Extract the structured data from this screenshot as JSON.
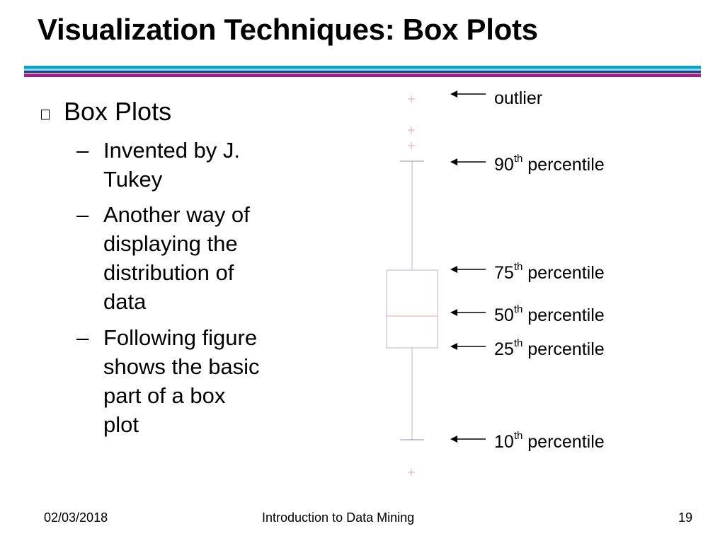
{
  "slide": {
    "title": "Visualization Techniques: Box Plots",
    "bullet": "Box Plots",
    "bullet_icon": "square-bullet-icon",
    "subpoints": [
      {
        "lines": [
          "Invented by J.",
          "Tukey"
        ]
      },
      {
        "lines": [
          "Another way of",
          "displaying the",
          "distribution of",
          "data"
        ]
      },
      {
        "lines": [
          "Following figure",
          "shows the basic",
          "part of a box",
          "plot"
        ]
      }
    ],
    "dash": "–"
  },
  "figure": {
    "labels": [
      {
        "num": "",
        "sup": "",
        "text": "outlier"
      },
      {
        "num": "90",
        "sup": "th",
        "text": " percentile"
      },
      {
        "num": "75",
        "sup": "th",
        "text": " percentile"
      },
      {
        "num": "50",
        "sup": "th",
        "text": " percentile"
      },
      {
        "num": "25",
        "sup": "th",
        "text": " percentile"
      },
      {
        "num": "10",
        "sup": "th",
        "text": " percentile"
      }
    ],
    "colors": {
      "box": "#b3b3e0",
      "median": "#e8a0a0",
      "outlier": "#e8a0a0",
      "arrow": "#000000"
    }
  },
  "footer": {
    "date": "02/03/2018",
    "course": "Introduction to Data Mining",
    "page": "19"
  },
  "colors": {
    "rule_cyan": "#00a0c8",
    "rule_magenta": "#a0208c"
  }
}
